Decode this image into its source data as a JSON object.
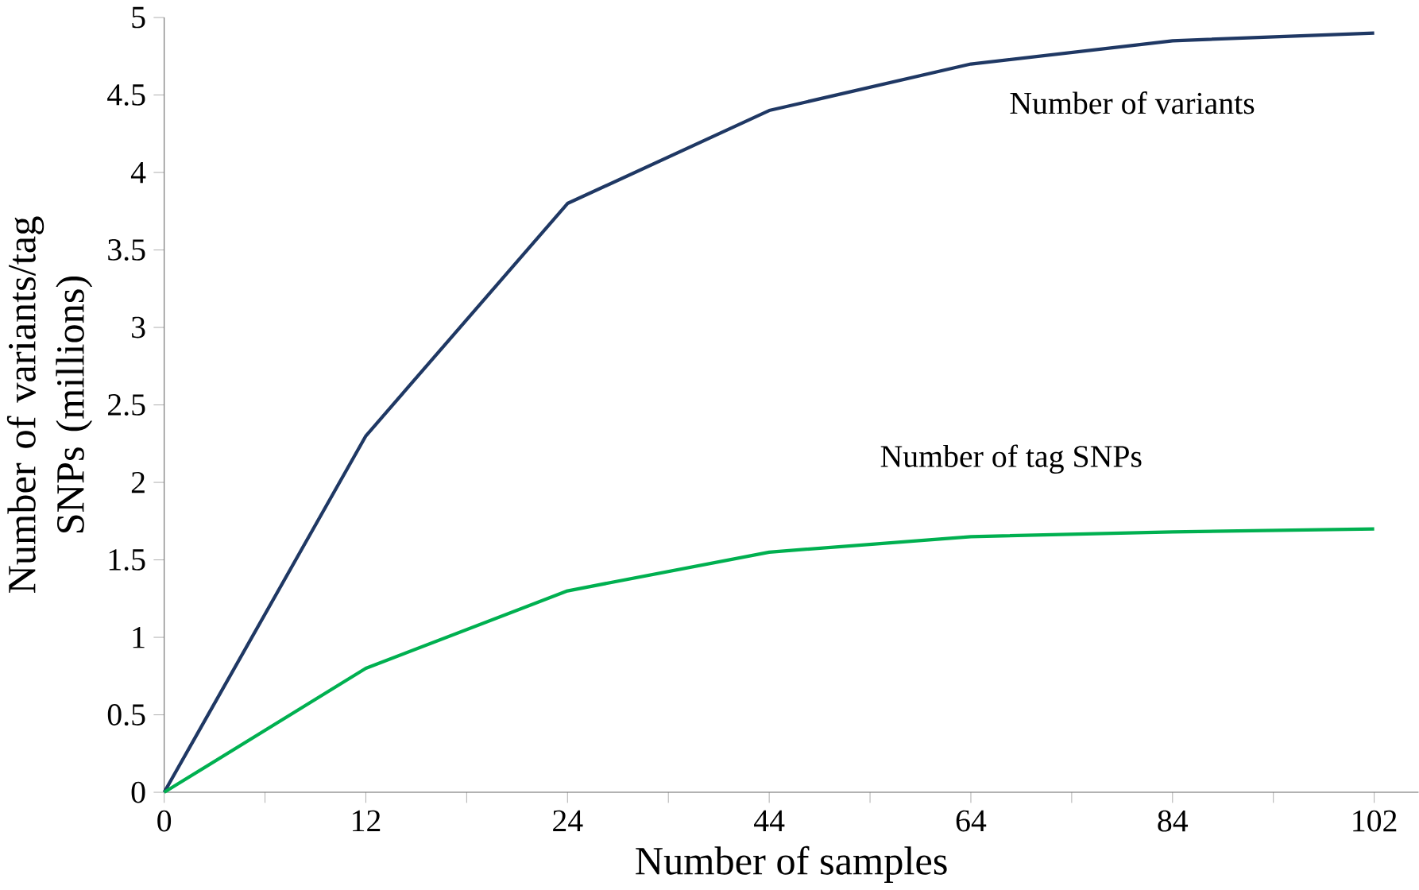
{
  "chart_data": {
    "type": "line",
    "xlabel": "Number of samples",
    "ylabel": "Number of variants/tag SNPs (millions)",
    "categories": [
      "0",
      "12",
      "24",
      "44",
      "64",
      "84",
      "102"
    ],
    "series": [
      {
        "name": "Number of variants",
        "color": "#1f3864",
        "values": [
          0,
          2.3,
          3.8,
          4.4,
          4.7,
          4.85,
          4.9
        ]
      },
      {
        "name": "Number of tag SNPs",
        "color": "#00b050",
        "values": [
          0,
          0.8,
          1.3,
          1.55,
          1.65,
          1.68,
          1.7
        ]
      }
    ],
    "ylim": [
      0,
      5
    ],
    "yticks": [
      0,
      0.5,
      1,
      1.5,
      2,
      2.5,
      3,
      3.5,
      4,
      4.5,
      5
    ],
    "grid": false,
    "legend": false,
    "marker": "none",
    "line_style": "solid"
  }
}
